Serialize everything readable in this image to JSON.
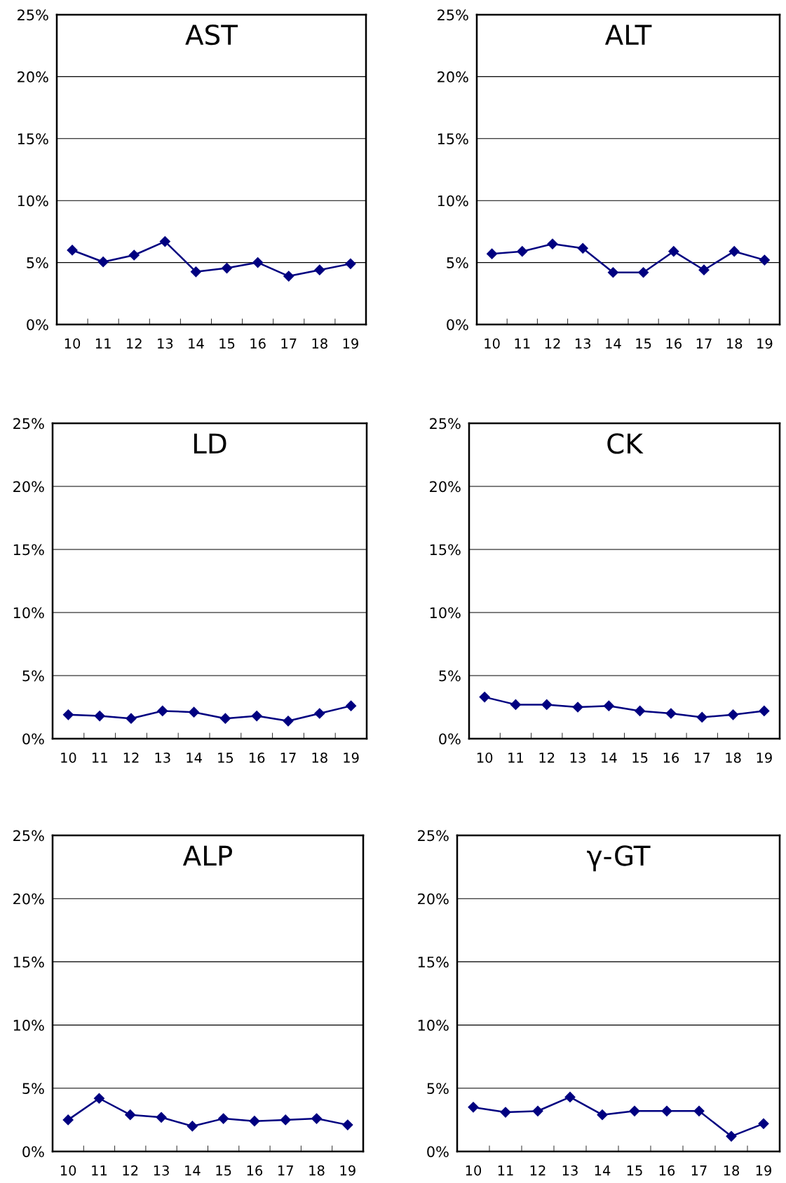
{
  "chart_data": [
    {
      "type": "line",
      "title": "AST",
      "categories": [
        "10",
        "11",
        "12",
        "13",
        "14",
        "15",
        "16",
        "17",
        "18",
        "19"
      ],
      "series": [
        {
          "color": "#000080",
          "values": [
            6.0,
            5.05,
            5.6,
            6.7,
            4.25,
            4.55,
            5.0,
            3.9,
            4.4,
            4.9
          ]
        }
      ],
      "ylim": [
        0,
        25
      ],
      "yticks": [
        {
          "value": 0,
          "label": "0%"
        },
        {
          "value": 5,
          "label": "5%"
        },
        {
          "value": 10,
          "label": "10%"
        },
        {
          "value": 15,
          "label": "15%"
        },
        {
          "value": 20,
          "label": "20%"
        },
        {
          "value": 25,
          "label": "25%"
        }
      ],
      "grid": "y",
      "marker": "diamond",
      "line_style": "solid"
    },
    {
      "type": "line",
      "title": "ALT",
      "categories": [
        "10",
        "11",
        "12",
        "13",
        "14",
        "15",
        "16",
        "17",
        "18",
        "19"
      ],
      "series": [
        {
          "color": "#000080",
          "values": [
            5.7,
            5.9,
            6.5,
            6.15,
            4.2,
            4.2,
            5.9,
            4.4,
            5.9,
            5.2
          ]
        }
      ],
      "ylim": [
        0,
        25
      ],
      "yticks": [
        {
          "value": 0,
          "label": "0%"
        },
        {
          "value": 5,
          "label": "5%"
        },
        {
          "value": 10,
          "label": "10%"
        },
        {
          "value": 15,
          "label": "15%"
        },
        {
          "value": 20,
          "label": "20%"
        },
        {
          "value": 25,
          "label": "25%"
        }
      ],
      "grid": "y",
      "marker": "diamond",
      "line_style": "solid"
    },
    {
      "type": "line",
      "title": "LD",
      "categories": [
        "10",
        "11",
        "12",
        "13",
        "14",
        "15",
        "16",
        "17",
        "18",
        "19"
      ],
      "series": [
        {
          "color": "#000080",
          "values": [
            1.9,
            1.8,
            1.6,
            2.2,
            2.1,
            1.6,
            1.8,
            1.4,
            2.0,
            2.6
          ]
        }
      ],
      "ylim": [
        0,
        25
      ],
      "yticks": [
        {
          "value": 0,
          "label": "0%"
        },
        {
          "value": 5,
          "label": "5%"
        },
        {
          "value": 10,
          "label": "10%"
        },
        {
          "value": 15,
          "label": "15%"
        },
        {
          "value": 20,
          "label": "20%"
        },
        {
          "value": 25,
          "label": "25%"
        }
      ],
      "grid": "y",
      "marker": "diamond",
      "line_style": "solid"
    },
    {
      "type": "line",
      "title": "CK",
      "categories": [
        "10",
        "11",
        "12",
        "13",
        "14",
        "15",
        "16",
        "17",
        "18",
        "19"
      ],
      "series": [
        {
          "color": "#000080",
          "values": [
            3.3,
            2.7,
            2.7,
            2.5,
            2.6,
            2.2,
            2.0,
            1.7,
            1.9,
            2.2
          ]
        }
      ],
      "ylim": [
        0,
        25
      ],
      "yticks": [
        {
          "value": 0,
          "label": "0%"
        },
        {
          "value": 5,
          "label": "5%"
        },
        {
          "value": 10,
          "label": "10%"
        },
        {
          "value": 15,
          "label": "15%"
        },
        {
          "value": 20,
          "label": "20%"
        },
        {
          "value": 25,
          "label": "25%"
        }
      ],
      "grid": "y",
      "marker": "diamond",
      "line_style": "solid"
    },
    {
      "type": "line",
      "title": "ALP",
      "categories": [
        "10",
        "11",
        "12",
        "13",
        "14",
        "15",
        "16",
        "17",
        "18",
        "19"
      ],
      "series": [
        {
          "color": "#000080",
          "values": [
            2.5,
            4.2,
            2.9,
            2.7,
            2.0,
            2.6,
            2.4,
            2.5,
            2.6,
            2.1
          ]
        }
      ],
      "ylim": [
        0,
        25
      ],
      "yticks": [
        {
          "value": 0,
          "label": "0%"
        },
        {
          "value": 5,
          "label": "5%"
        },
        {
          "value": 10,
          "label": "10%"
        },
        {
          "value": 15,
          "label": "15%"
        },
        {
          "value": 20,
          "label": "20%"
        },
        {
          "value": 25,
          "label": "25%"
        }
      ],
      "grid": "y",
      "marker": "diamond",
      "line_style": "solid"
    },
    {
      "type": "line",
      "title": "γ-GT",
      "categories": [
        "10",
        "11",
        "12",
        "13",
        "14",
        "15",
        "16",
        "17",
        "18",
        "19"
      ],
      "series": [
        {
          "color": "#000080",
          "values": [
            3.5,
            3.1,
            3.2,
            4.3,
            2.9,
            3.2,
            3.2,
            3.2,
            1.2,
            2.2
          ]
        }
      ],
      "ylim": [
        0,
        25
      ],
      "yticks": [
        {
          "value": 0,
          "label": "0%"
        },
        {
          "value": 5,
          "label": "5%"
        },
        {
          "value": 10,
          "label": "10%"
        },
        {
          "value": 15,
          "label": "15%"
        },
        {
          "value": 20,
          "label": "20%"
        },
        {
          "value": 25,
          "label": "25%"
        }
      ],
      "grid": "y",
      "marker": "diamond",
      "line_style": "solid"
    }
  ]
}
